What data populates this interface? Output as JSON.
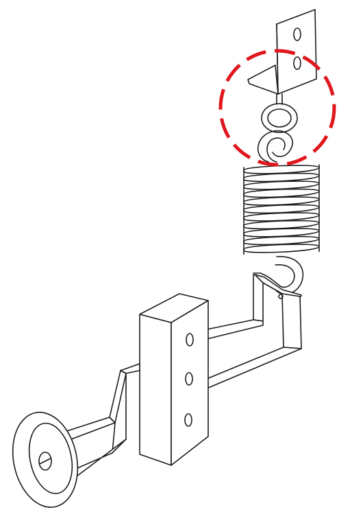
{
  "figure": {
    "parts": [
      "mounting-bracket",
      "hook-loop-joint",
      "coil-spring",
      "spring-end-hook",
      "l-shaped-strip",
      "mounting-block",
      "inclined-bar",
      "round-disc"
    ],
    "highlight": {
      "target": "hook-loop-joint",
      "style": "dashed-circle",
      "color": "#e0161d"
    },
    "ink_color": "#1a1a1a",
    "background": "#ffffff"
  }
}
